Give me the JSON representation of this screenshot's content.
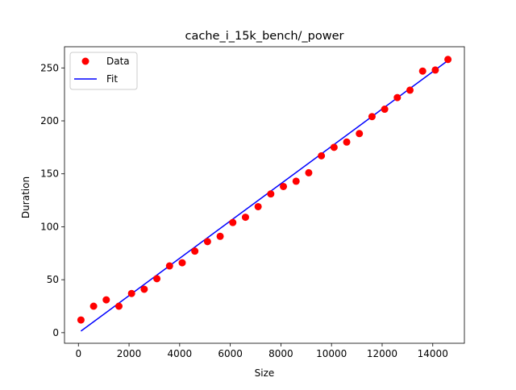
{
  "chart_data": {
    "type": "scatter",
    "title": "cache_i_15k_bench/_power",
    "xlabel": "Size",
    "ylabel": "Duration",
    "xlim": [
      -550,
      15250
    ],
    "ylim": [
      -10,
      270
    ],
    "xticks": [
      0,
      2000,
      4000,
      6000,
      8000,
      10000,
      12000,
      14000
    ],
    "yticks": [
      0,
      50,
      100,
      150,
      200,
      250
    ],
    "grid": false,
    "legend": {
      "position": "top-left",
      "entries": [
        {
          "label": "Data",
          "marker": "circle",
          "color": "#ff0000"
        },
        {
          "label": "Fit",
          "marker": "line",
          "color": "#0000ff"
        }
      ]
    },
    "series": [
      {
        "name": "Data",
        "kind": "scatter",
        "color": "#ff0000",
        "x": [
          100,
          600,
          1100,
          1600,
          2100,
          2600,
          3100,
          3600,
          4100,
          4600,
          5100,
          5600,
          6100,
          6600,
          7100,
          7600,
          8100,
          8600,
          9100,
          9600,
          10100,
          10600,
          11100,
          11600,
          12100,
          12600,
          13100,
          13600,
          14100,
          14600
        ],
        "y": [
          12,
          25,
          31,
          25,
          37,
          41,
          51,
          63,
          66,
          77,
          86,
          91,
          104,
          109,
          119,
          131,
          138,
          143,
          151,
          167,
          175,
          180,
          188,
          204,
          211,
          222,
          229,
          247,
          248,
          258
        ]
      },
      {
        "name": "Fit",
        "kind": "line",
        "color": "#0000ff",
        "x": [
          100,
          14600
        ],
        "y": [
          1.5,
          257
        ]
      }
    ]
  }
}
